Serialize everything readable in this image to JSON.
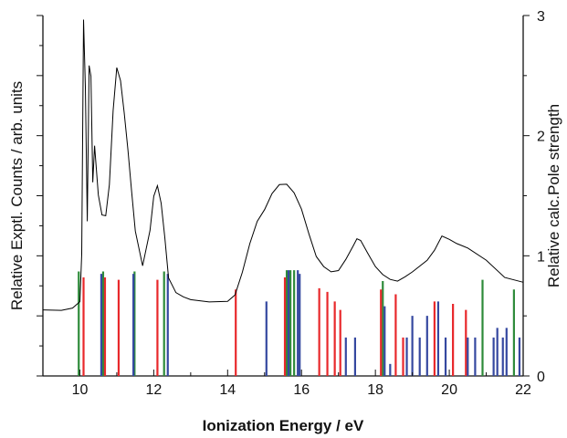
{
  "chart_data": {
    "type": "line",
    "title": "",
    "xlabel": "Ionization Energy / eV",
    "ylabel_left": "Relative Exptl. Counts / arb. units",
    "ylabel_right": "Relative calc.Pole strength",
    "xlim": [
      9,
      22
    ],
    "x_ticks": [
      10,
      12,
      14,
      16,
      18,
      20,
      22
    ],
    "y_right_lim": [
      0,
      3
    ],
    "y_right_ticks": [
      0,
      1,
      2,
      3
    ],
    "y_left_tick_labels": "none",
    "grid": false,
    "experimental_spectrum": {
      "color": "#000000",
      "points": [
        [
          9.0,
          0.55
        ],
        [
          9.5,
          0.56
        ],
        [
          9.8,
          0.58
        ],
        [
          10.0,
          0.62
        ],
        [
          10.05,
          1.0
        ],
        [
          10.1,
          2.95
        ],
        [
          10.15,
          2.4
        ],
        [
          10.2,
          1.3
        ],
        [
          10.25,
          2.6
        ],
        [
          10.3,
          2.5
        ],
        [
          10.35,
          1.6
        ],
        [
          10.4,
          1.9
        ],
        [
          10.5,
          1.5
        ],
        [
          10.6,
          1.35
        ],
        [
          10.7,
          1.35
        ],
        [
          10.8,
          1.6
        ],
        [
          10.9,
          2.2
        ],
        [
          11.0,
          2.55
        ],
        [
          11.1,
          2.45
        ],
        [
          11.2,
          2.2
        ],
        [
          11.3,
          1.9
        ],
        [
          11.4,
          1.55
        ],
        [
          11.5,
          1.2
        ],
        [
          11.7,
          0.9
        ],
        [
          11.9,
          1.2
        ],
        [
          12.0,
          1.5
        ],
        [
          12.1,
          1.6
        ],
        [
          12.2,
          1.45
        ],
        [
          12.3,
          1.15
        ],
        [
          12.4,
          0.8
        ],
        [
          12.6,
          0.68
        ],
        [
          12.8,
          0.66
        ],
        [
          13.0,
          0.65
        ],
        [
          13.5,
          0.63
        ],
        [
          14.0,
          0.62
        ],
        [
          14.2,
          0.66
        ],
        [
          14.4,
          0.85
        ],
        [
          14.6,
          1.1
        ],
        [
          14.8,
          1.3
        ],
        [
          15.0,
          1.4
        ],
        [
          15.2,
          1.52
        ],
        [
          15.4,
          1.58
        ],
        [
          15.6,
          1.58
        ],
        [
          15.8,
          1.52
        ],
        [
          16.0,
          1.4
        ],
        [
          16.2,
          1.2
        ],
        [
          16.4,
          1.0
        ],
        [
          16.6,
          0.9
        ],
        [
          16.8,
          0.85
        ],
        [
          17.0,
          0.87
        ],
        [
          17.2,
          0.98
        ],
        [
          17.4,
          1.1
        ],
        [
          17.5,
          1.15
        ],
        [
          17.6,
          1.12
        ],
        [
          17.8,
          1.0
        ],
        [
          18.0,
          0.9
        ],
        [
          18.2,
          0.85
        ],
        [
          18.4,
          0.82
        ],
        [
          18.6,
          0.8
        ],
        [
          18.8,
          0.82
        ],
        [
          19.0,
          0.85
        ],
        [
          19.4,
          0.95
        ],
        [
          19.6,
          1.05
        ],
        [
          19.8,
          1.18
        ],
        [
          20.0,
          1.15
        ],
        [
          20.2,
          1.1
        ],
        [
          20.5,
          1.05
        ],
        [
          21.0,
          0.95
        ],
        [
          21.5,
          0.82
        ],
        [
          22.0,
          0.78
        ]
      ]
    },
    "pole_strength_sticks": [
      {
        "color": "#2e8b3a",
        "x": [
          9.97,
          10.63,
          11.48,
          12.28,
          15.6,
          15.7,
          15.8,
          18.2,
          20.9,
          21.75
        ],
        "values": [
          0.87,
          0.87,
          0.87,
          0.87,
          0.88,
          0.88,
          0.88,
          0.79,
          0.8,
          0.72
        ]
      },
      {
        "color": "#e8282b",
        "x": [
          10.1,
          10.68,
          11.05,
          12.1,
          14.22,
          15.55,
          16.48,
          16.7,
          16.9,
          17.05,
          18.15,
          18.55,
          18.75,
          19.6,
          20.1,
          20.45
        ],
        "values": [
          0.82,
          0.82,
          0.8,
          0.8,
          0.72,
          0.82,
          0.73,
          0.7,
          0.62,
          0.55,
          0.72,
          0.68,
          0.32,
          0.62,
          0.6,
          0.55
        ]
      },
      {
        "color": "#3548a0",
        "x": [
          10.58,
          11.45,
          12.38,
          15.05,
          15.65,
          15.9,
          15.95,
          17.2,
          17.45,
          18.25,
          18.4,
          18.85,
          19.0,
          19.2,
          19.4,
          19.7,
          19.9,
          20.5,
          20.7,
          21.2,
          21.3,
          21.45,
          21.55,
          21.9
        ],
        "values": [
          0.85,
          0.85,
          0.85,
          0.62,
          0.88,
          0.88,
          0.85,
          0.32,
          0.32,
          0.58,
          0.1,
          0.32,
          0.5,
          0.32,
          0.5,
          0.62,
          0.32,
          0.32,
          0.32,
          0.32,
          0.4,
          0.32,
          0.4,
          0.32
        ]
      }
    ]
  }
}
